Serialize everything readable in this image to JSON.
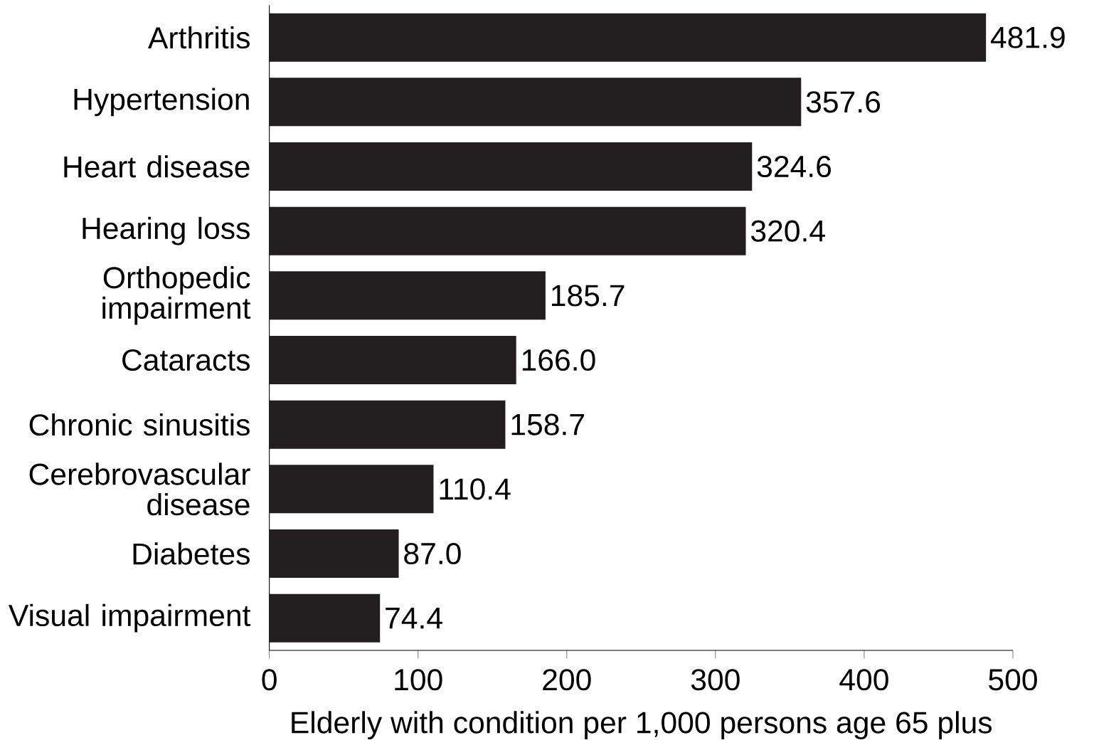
{
  "chart_data": {
    "type": "bar",
    "orientation": "horizontal",
    "xlabel": "Elderly with condition per 1,000 persons age 65 plus",
    "categories": [
      "Arthritis",
      "Hypertension",
      "Heart disease",
      "Hearing loss",
      "Orthopedic impairment",
      "Cataracts",
      "Chronic sinusitis",
      "Cerebrovascular disease",
      "Diabetes",
      "Visual impairment"
    ],
    "values": [
      481.9,
      357.6,
      324.6,
      320.4,
      185.7,
      166.0,
      158.7,
      110.4,
      87.0,
      74.4
    ],
    "value_labels": [
      "481.9",
      "357.6",
      "324.6",
      "320.4",
      "185.7",
      "166.0",
      "158.7",
      "110.4",
      "87.0",
      "74.4"
    ],
    "color": "#231f20",
    "xlim": [
      0,
      500
    ],
    "xticks": [
      0,
      100,
      200,
      300,
      400,
      500
    ],
    "grid": false
  }
}
